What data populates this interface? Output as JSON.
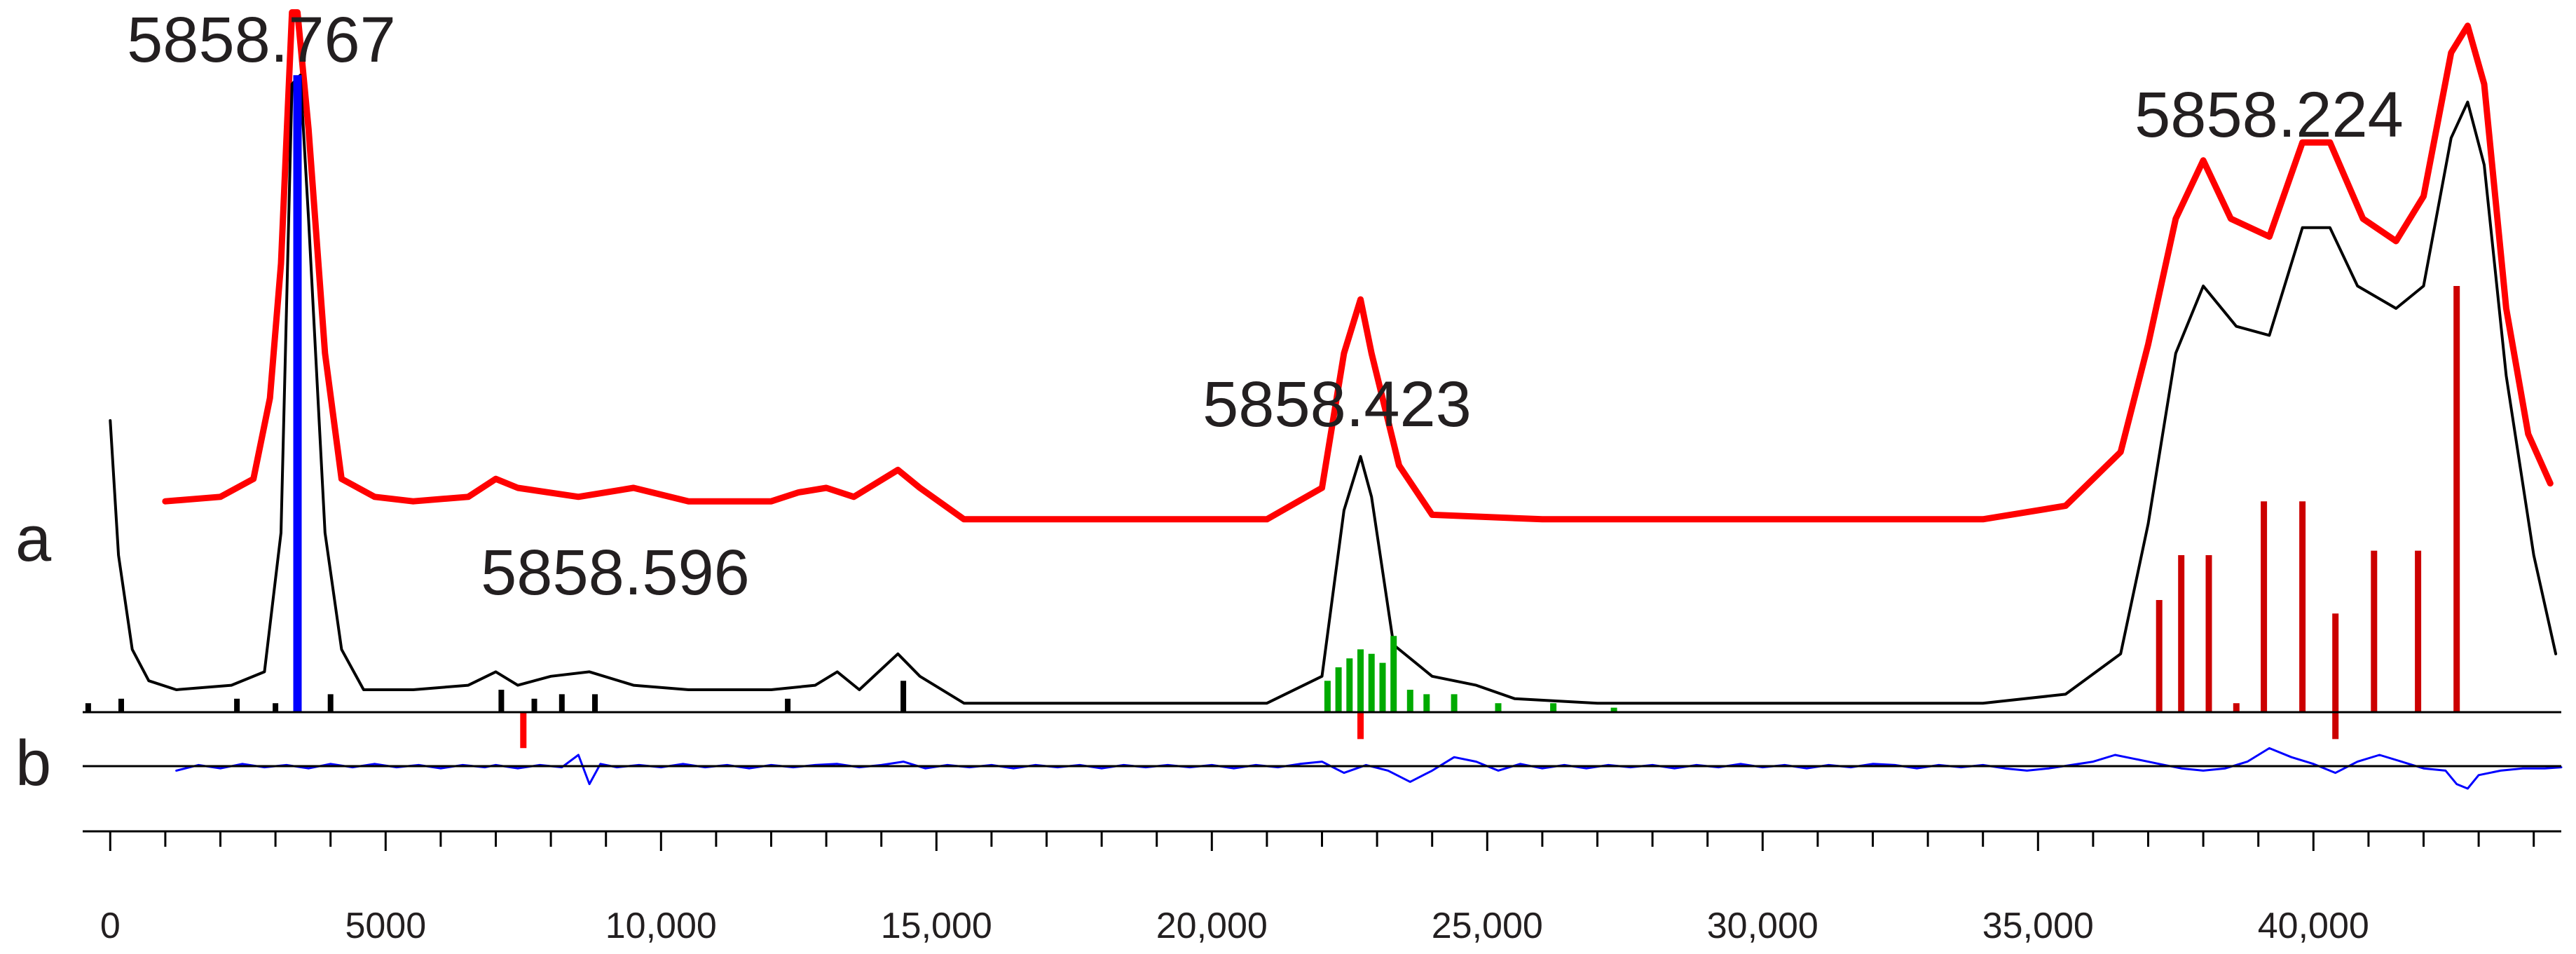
{
  "chart_data": {
    "type": "line",
    "xlim": [
      -500,
      44500
    ],
    "panel_labels": {
      "a": "a",
      "b": "b"
    },
    "x_ticks": [
      0,
      5000,
      10000,
      15000,
      20000,
      25000,
      30000,
      35000,
      40000
    ],
    "x_tick_labels": [
      "0",
      "5000",
      "10,000",
      "15,000",
      "20,000",
      "25,000",
      "30,000",
      "35,000",
      "40,000"
    ],
    "peak_labels": [
      {
        "text": "5858.767",
        "x": 3300
      },
      {
        "text": "5858.596",
        "x": 9500
      },
      {
        "text": "5858.423",
        "x": 22600
      },
      {
        "text": "5858.224",
        "x": 39500
      }
    ],
    "series": [
      {
        "color": "#ff0000",
        "points": [
          [
            1000,
            0.47
          ],
          [
            2000,
            0.48
          ],
          [
            2600,
            0.52
          ],
          [
            2900,
            0.7
          ],
          [
            3100,
            1.0
          ],
          [
            3300,
            1.56
          ],
          [
            3400,
            1.56
          ],
          [
            3600,
            1.3
          ],
          [
            3900,
            0.8
          ],
          [
            4200,
            0.52
          ],
          [
            4800,
            0.48
          ],
          [
            5500,
            0.47
          ],
          [
            6500,
            0.48
          ],
          [
            7000,
            0.52
          ],
          [
            7400,
            0.5
          ],
          [
            8500,
            0.48
          ],
          [
            9500,
            0.5
          ],
          [
            10500,
            0.47
          ],
          [
            12000,
            0.47
          ],
          [
            12500,
            0.49
          ],
          [
            13000,
            0.5
          ],
          [
            13500,
            0.48
          ],
          [
            14300,
            0.54
          ],
          [
            14700,
            0.5
          ],
          [
            15500,
            0.43
          ],
          [
            17000,
            0.43
          ],
          [
            19000,
            0.43
          ],
          [
            21000,
            0.43
          ],
          [
            22000,
            0.5
          ],
          [
            22400,
            0.8
          ],
          [
            22700,
            0.92
          ],
          [
            22900,
            0.8
          ],
          [
            23400,
            0.55
          ],
          [
            24000,
            0.44
          ],
          [
            26000,
            0.43
          ],
          [
            30000,
            0.43
          ],
          [
            34000,
            0.43
          ],
          [
            35500,
            0.46
          ],
          [
            36500,
            0.58
          ],
          [
            37000,
            0.82
          ],
          [
            37500,
            1.1
          ],
          [
            38000,
            1.23
          ],
          [
            38500,
            1.1
          ],
          [
            39200,
            1.06
          ],
          [
            39800,
            1.27
          ],
          [
            40300,
            1.27
          ],
          [
            40900,
            1.1
          ],
          [
            41500,
            1.05
          ],
          [
            42000,
            1.15
          ],
          [
            42500,
            1.47
          ],
          [
            42800,
            1.53
          ],
          [
            43100,
            1.4
          ],
          [
            43500,
            0.9
          ],
          [
            43900,
            0.62
          ],
          [
            44300,
            0.51
          ]
        ]
      },
      {
        "color": "#000000",
        "points": [
          [
            0,
            0.65
          ],
          [
            150,
            0.35
          ],
          [
            400,
            0.14
          ],
          [
            700,
            0.07
          ],
          [
            1200,
            0.05
          ],
          [
            2200,
            0.06
          ],
          [
            2800,
            0.09
          ],
          [
            3100,
            0.4
          ],
          [
            3300,
            1.4
          ],
          [
            3450,
            1.42
          ],
          [
            3600,
            1.1
          ],
          [
            3900,
            0.4
          ],
          [
            4200,
            0.14
          ],
          [
            4600,
            0.05
          ],
          [
            5500,
            0.05
          ],
          [
            6500,
            0.06
          ],
          [
            7000,
            0.09
          ],
          [
            7400,
            0.06
          ],
          [
            8000,
            0.08
          ],
          [
            8700,
            0.09
          ],
          [
            9500,
            0.06
          ],
          [
            10500,
            0.05
          ],
          [
            12000,
            0.05
          ],
          [
            12800,
            0.06
          ],
          [
            13200,
            0.09
          ],
          [
            13600,
            0.05
          ],
          [
            14300,
            0.13
          ],
          [
            14700,
            0.08
          ],
          [
            15500,
            0.02
          ],
          [
            17000,
            0.02
          ],
          [
            19000,
            0.02
          ],
          [
            21000,
            0.02
          ],
          [
            22000,
            0.08
          ],
          [
            22400,
            0.45
          ],
          [
            22700,
            0.57
          ],
          [
            22900,
            0.48
          ],
          [
            23300,
            0.15
          ],
          [
            24000,
            0.08
          ],
          [
            24800,
            0.06
          ],
          [
            25500,
            0.03
          ],
          [
            27000,
            0.02
          ],
          [
            30000,
            0.02
          ],
          [
            34000,
            0.02
          ],
          [
            35500,
            0.04
          ],
          [
            36500,
            0.13
          ],
          [
            37000,
            0.42
          ],
          [
            37500,
            0.8
          ],
          [
            38000,
            0.95
          ],
          [
            38600,
            0.86
          ],
          [
            39200,
            0.84
          ],
          [
            39800,
            1.08
          ],
          [
            40300,
            1.08
          ],
          [
            40800,
            0.95
          ],
          [
            41500,
            0.9
          ],
          [
            42000,
            0.95
          ],
          [
            42500,
            1.28
          ],
          [
            42800,
            1.36
          ],
          [
            43100,
            1.22
          ],
          [
            43500,
            0.75
          ],
          [
            44000,
            0.35
          ],
          [
            44400,
            0.13
          ]
        ]
      },
      {
        "color": "#0000ff",
        "points": [
          [
            1200,
            -0.02
          ],
          [
            1600,
            0.005
          ],
          [
            2000,
            -0.01
          ],
          [
            2400,
            0.01
          ],
          [
            2800,
            -0.005
          ],
          [
            3200,
            0.005
          ],
          [
            3600,
            -0.01
          ],
          [
            4000,
            0.01
          ],
          [
            4400,
            -0.005
          ],
          [
            4800,
            0.01
          ],
          [
            5200,
            -0.005
          ],
          [
            5600,
            0.005
          ],
          [
            6000,
            -0.01
          ],
          [
            6400,
            0.005
          ],
          [
            6800,
            -0.005
          ],
          [
            7000,
            0.005
          ],
          [
            7400,
            -0.01
          ],
          [
            7800,
            0.005
          ],
          [
            8200,
            -0.005
          ],
          [
            8500,
            0.05
          ],
          [
            8700,
            -0.08
          ],
          [
            8900,
            0.01
          ],
          [
            9200,
            -0.005
          ],
          [
            9600,
            0.005
          ],
          [
            10000,
            -0.005
          ],
          [
            10400,
            0.01
          ],
          [
            10800,
            -0.005
          ],
          [
            11200,
            0.005
          ],
          [
            11600,
            -0.01
          ],
          [
            12000,
            0.005
          ],
          [
            12400,
            -0.005
          ],
          [
            12800,
            0.005
          ],
          [
            13200,
            0.01
          ],
          [
            13600,
            -0.005
          ],
          [
            14000,
            0.005
          ],
          [
            14400,
            0.02
          ],
          [
            14800,
            -0.01
          ],
          [
            15200,
            0.005
          ],
          [
            15600,
            -0.005
          ],
          [
            16000,
            0.005
          ],
          [
            16400,
            -0.01
          ],
          [
            16800,
            0.005
          ],
          [
            17200,
            -0.005
          ],
          [
            17600,
            0.005
          ],
          [
            18000,
            -0.01
          ],
          [
            18400,
            0.005
          ],
          [
            18800,
            -0.005
          ],
          [
            19200,
            0.005
          ],
          [
            19600,
            -0.005
          ],
          [
            20000,
            0.005
          ],
          [
            20400,
            -0.01
          ],
          [
            20800,
            0.005
          ],
          [
            21200,
            -0.005
          ],
          [
            21600,
            0.01
          ],
          [
            22000,
            0.02
          ],
          [
            22400,
            -0.03
          ],
          [
            22800,
            0.005
          ],
          [
            23200,
            -0.02
          ],
          [
            23600,
            -0.07
          ],
          [
            24000,
            -0.02
          ],
          [
            24400,
            0.04
          ],
          [
            24800,
            0.02
          ],
          [
            25200,
            -0.02
          ],
          [
            25600,
            0.01
          ],
          [
            26000,
            -0.01
          ],
          [
            26400,
            0.005
          ],
          [
            26800,
            -0.01
          ],
          [
            27200,
            0.005
          ],
          [
            27600,
            -0.005
          ],
          [
            28000,
            0.005
          ],
          [
            28400,
            -0.01
          ],
          [
            28800,
            0.005
          ],
          [
            29200,
            -0.005
          ],
          [
            29600,
            0.01
          ],
          [
            30000,
            -0.005
          ],
          [
            30400,
            0.005
          ],
          [
            30800,
            -0.01
          ],
          [
            31200,
            0.005
          ],
          [
            31600,
            -0.005
          ],
          [
            32000,
            0.01
          ],
          [
            32400,
            0.005
          ],
          [
            32800,
            -0.01
          ],
          [
            33200,
            0.005
          ],
          [
            33600,
            -0.005
          ],
          [
            34000,
            0.005
          ],
          [
            34400,
            -0.01
          ],
          [
            34800,
            -0.02
          ],
          [
            35200,
            -0.01
          ],
          [
            35600,
            0.005
          ],
          [
            36000,
            0.02
          ],
          [
            36400,
            0.05
          ],
          [
            36800,
            0.03
          ],
          [
            37200,
            0.01
          ],
          [
            37600,
            -0.01
          ],
          [
            38000,
            -0.02
          ],
          [
            38400,
            -0.01
          ],
          [
            38800,
            0.02
          ],
          [
            39200,
            0.08
          ],
          [
            39600,
            0.04
          ],
          [
            40000,
            0.01
          ],
          [
            40400,
            -0.03
          ],
          [
            40800,
            0.02
          ],
          [
            41200,
            0.05
          ],
          [
            41600,
            0.02
          ],
          [
            42000,
            -0.01
          ],
          [
            42400,
            -0.02
          ],
          [
            42600,
            -0.08
          ],
          [
            42800,
            -0.1
          ],
          [
            43000,
            -0.04
          ],
          [
            43400,
            -0.02
          ],
          [
            43800,
            -0.01
          ],
          [
            44200,
            -0.01
          ],
          [
            44500,
            -0.005
          ]
        ]
      }
    ],
    "sticks": [
      {
        "color": "#0000ff",
        "values": [
          [
            3400,
            1.42
          ]
        ]
      },
      {
        "color": "#000000",
        "values": [
          [
            -400,
            0.02
          ],
          [
            200,
            0.03
          ],
          [
            2300,
            0.03
          ],
          [
            3000,
            0.02
          ],
          [
            4000,
            0.04
          ],
          [
            7100,
            0.05
          ],
          [
            7700,
            0.03
          ],
          [
            8200,
            0.04
          ],
          [
            8800,
            0.04
          ],
          [
            12300,
            0.03
          ],
          [
            14400,
            0.07
          ]
        ]
      },
      {
        "color": "#00aa00",
        "values": [
          [
            22100,
            0.07
          ],
          [
            22300,
            0.1
          ],
          [
            22500,
            0.12
          ],
          [
            22700,
            0.14
          ],
          [
            22900,
            0.13
          ],
          [
            23100,
            0.11
          ],
          [
            23300,
            0.17
          ],
          [
            23600,
            0.05
          ],
          [
            23900,
            0.04
          ],
          [
            24400,
            0.04
          ],
          [
            25200,
            0.02
          ],
          [
            26200,
            0.02
          ],
          [
            27300,
            0.01
          ]
        ]
      },
      {
        "color": "#ff0000",
        "values": [
          [
            7500,
            -0.08
          ],
          [
            22700,
            -0.06
          ]
        ]
      },
      {
        "color": "#cc0000",
        "values": [
          [
            37200,
            0.25
          ],
          [
            37600,
            0.35
          ],
          [
            38100,
            0.35
          ],
          [
            38600,
            0.02
          ],
          [
            39100,
            0.47
          ],
          [
            39800,
            0.47
          ],
          [
            40400,
            0.22
          ],
          [
            40400,
            -0.06
          ],
          [
            41100,
            0.36
          ],
          [
            41900,
            0.36
          ],
          [
            42600,
            0.95
          ]
        ]
      }
    ]
  }
}
